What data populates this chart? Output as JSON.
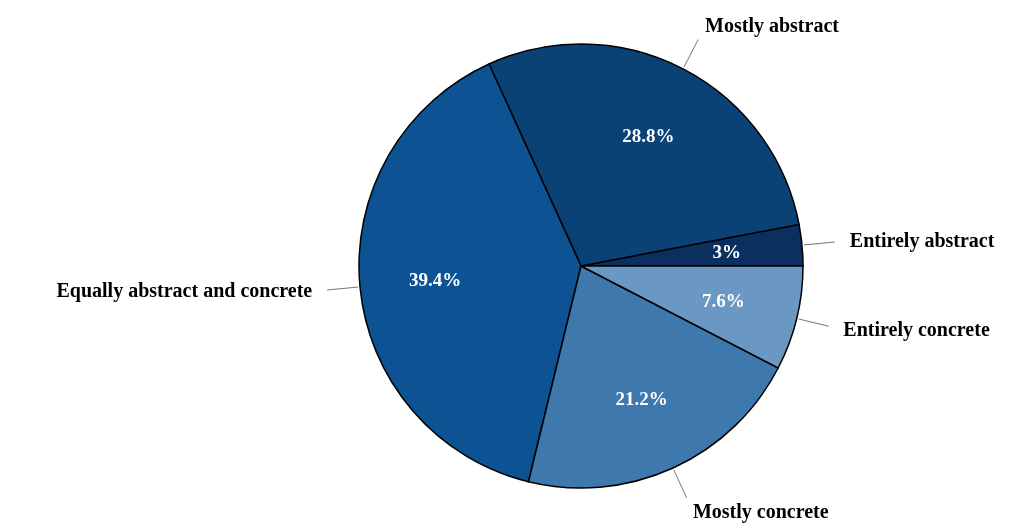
{
  "chart_data": {
    "type": "pie",
    "categories": [
      "Entirely abstract",
      "Mostly abstract",
      "Equally abstract and concrete",
      "Mostly concrete",
      "Entirely concrete"
    ],
    "values": [
      3,
      28.8,
      39.4,
      21.2,
      7.6
    ],
    "value_labels": [
      "3%",
      "28.8%",
      "39.4%",
      "21.2%",
      "7.6%"
    ],
    "colors": [
      "#0b3060",
      "#0b4276",
      "#0d5293",
      "#3f78ad",
      "#6b98c2"
    ]
  }
}
